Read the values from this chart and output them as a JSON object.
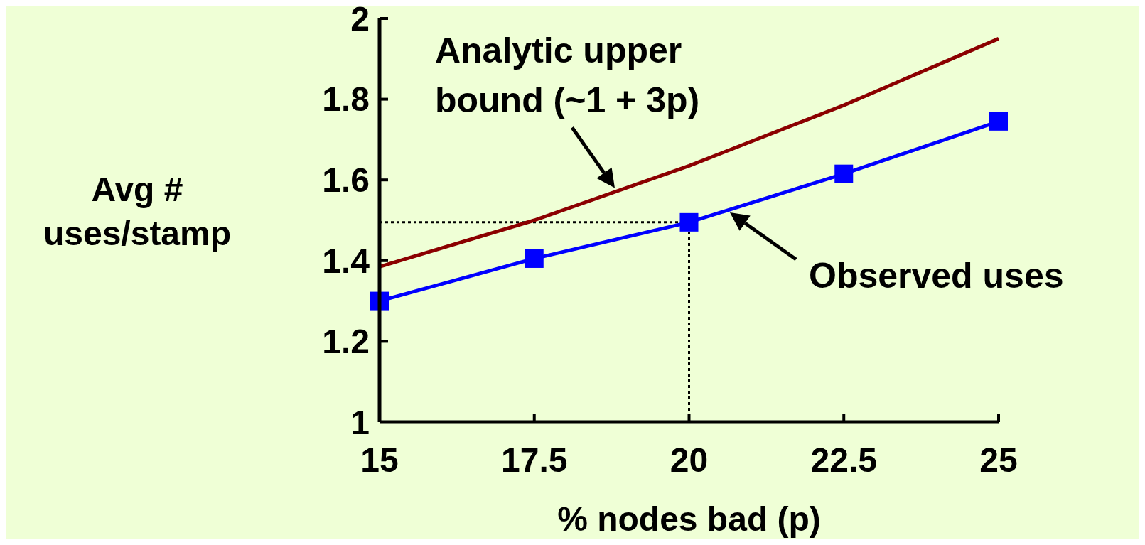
{
  "chart_data": {
    "type": "line",
    "xlabel": "% nodes bad (p)",
    "ylabel": "Avg # uses/stamp",
    "x": [
      15,
      17.5,
      20,
      22.5,
      25
    ],
    "series": [
      {
        "color": "#8b0000",
        "values": [
          1.385,
          1.5,
          1.635,
          1.785,
          1.95
        ],
        "marker": "none"
      },
      {
        "color": "#0000ff",
        "values": [
          1.3,
          1.405,
          1.495,
          1.615,
          1.745
        ],
        "marker": "square"
      }
    ],
    "ref_lines": [
      {
        "axis": "y",
        "value": 1.495,
        "color": "#000000",
        "line_style": "dotted"
      },
      {
        "axis": "x",
        "value": 20,
        "color": "#000000",
        "line_style": "dotted"
      }
    ],
    "xlim": [
      15,
      25
    ],
    "xticks": [
      15,
      17.5,
      20,
      22.5,
      25
    ],
    "ylim": [
      1,
      2
    ],
    "yticks": [
      1,
      1.2,
      1.4,
      1.6,
      1.8,
      2
    ],
    "annotations": [
      {
        "text": "Analytic upper bound (~1 + 3p)",
        "x": 18.8,
        "y": 1.58
      },
      "Observed uses"
    ],
    "grid": false
  }
}
